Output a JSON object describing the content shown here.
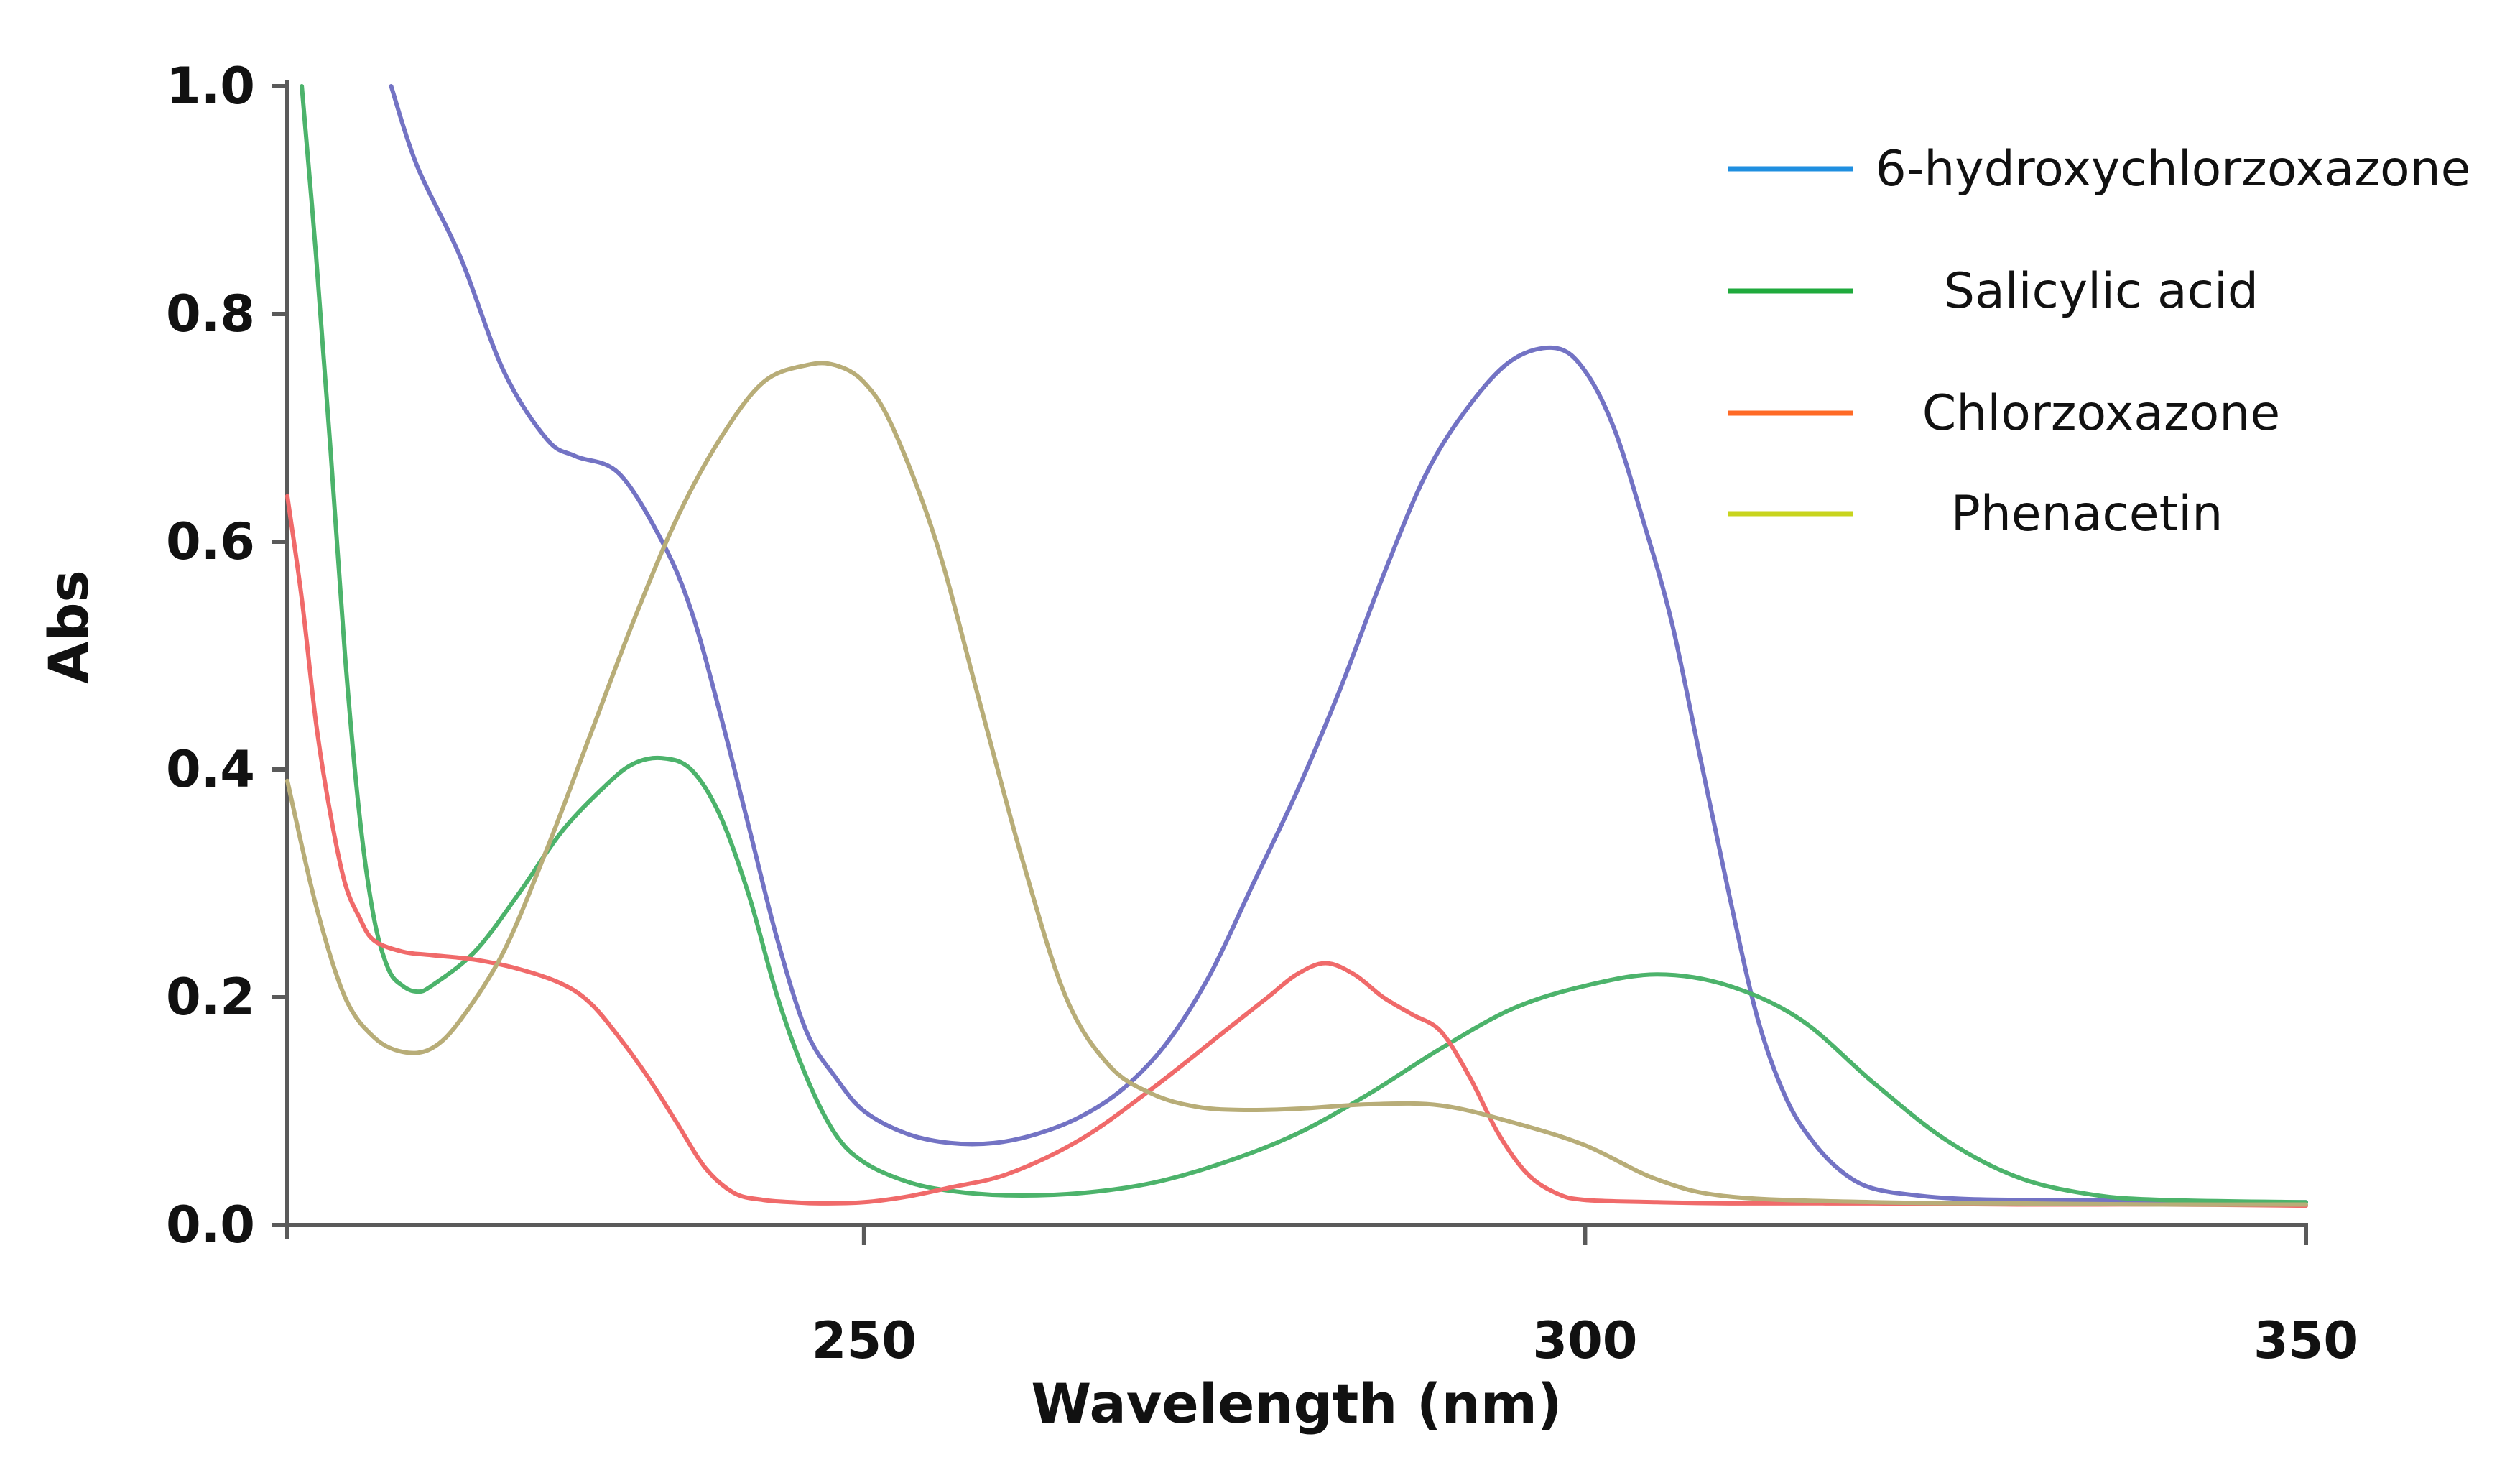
{
  "chart_data": {
    "type": "line",
    "title": "",
    "xlabel": "Wavelength (nm)",
    "ylabel": "Abs",
    "xlim": [
      210,
      350
    ],
    "ylim": [
      0,
      1.0
    ],
    "xticks": [
      250,
      300,
      350
    ],
    "xtick_labels": [
      "250",
      "300",
      "350"
    ],
    "yticks": [
      0.0,
      0.2,
      0.4,
      0.6,
      0.8,
      1.0
    ],
    "ytick_labels": [
      "0.0",
      "0.2",
      "0.4",
      "0.6",
      "0.8",
      "1.0"
    ],
    "grid": false,
    "legend_position": "top-right",
    "legend": [
      {
        "label": "6-hydroxychlorzoxazone",
        "color": "#1f8fe0"
      },
      {
        "label": "Salicylic acid",
        "color": "#1faa3c"
      },
      {
        "label": "Chlorzoxazone",
        "color": "#ff6a26"
      },
      {
        "label": "Phenacetin",
        "color": "#c8d41e"
      }
    ],
    "series": [
      {
        "name": "6-hydroxychlorzoxazone",
        "color": "#7373c4",
        "x": [
          217.2,
          219,
          222,
          225,
          228,
          230,
          233,
          236,
          238,
          240,
          242,
          244,
          246,
          248,
          250,
          253,
          256,
          259,
          262,
          265,
          268,
          271,
          274,
          277,
          280,
          283,
          286,
          289,
          292,
          295,
          298,
          300,
          302,
          304,
          306,
          308,
          310,
          312,
          314,
          316,
          318,
          320,
          323,
          326,
          330,
          335,
          340,
          345,
          350
        ],
        "y": [
          1.0,
          0.93,
          0.85,
          0.75,
          0.69,
          0.675,
          0.66,
          0.6,
          0.54,
          0.45,
          0.35,
          0.25,
          0.17,
          0.13,
          0.1,
          0.08,
          0.072,
          0.072,
          0.08,
          0.095,
          0.12,
          0.16,
          0.22,
          0.3,
          0.38,
          0.47,
          0.57,
          0.66,
          0.72,
          0.76,
          0.77,
          0.75,
          0.7,
          0.62,
          0.53,
          0.41,
          0.29,
          0.18,
          0.11,
          0.07,
          0.045,
          0.032,
          0.026,
          0.023,
          0.022,
          0.022,
          0.021,
          0.02,
          0.02
        ]
      },
      {
        "name": "Salicylic acid",
        "color": "#4cb36b",
        "x": [
          211,
          212,
          213,
          214,
          215,
          216,
          217,
          218,
          219,
          220,
          223,
          226,
          229,
          232,
          234,
          236,
          238,
          240,
          242,
          244,
          246,
          248,
          250,
          253,
          256,
          260,
          265,
          270,
          275,
          280,
          285,
          290,
          295,
          300,
          305,
          310,
          315,
          320,
          325,
          330,
          335,
          340,
          350
        ],
        "y": [
          1.0,
          0.85,
          0.68,
          0.5,
          0.36,
          0.27,
          0.225,
          0.21,
          0.205,
          0.21,
          0.24,
          0.29,
          0.345,
          0.385,
          0.405,
          0.41,
          0.4,
          0.36,
          0.29,
          0.2,
          0.13,
          0.08,
          0.055,
          0.038,
          0.03,
          0.026,
          0.028,
          0.037,
          0.055,
          0.08,
          0.115,
          0.155,
          0.19,
          0.21,
          0.22,
          0.21,
          0.18,
          0.125,
          0.075,
          0.042,
          0.027,
          0.022,
          0.02
        ]
      },
      {
        "name": "Chlorzoxazone",
        "color": "#f06a6a",
        "x": [
          210,
          211,
          212,
          213,
          214,
          215,
          216,
          218,
          220,
          223,
          226,
          229,
          231,
          233,
          235,
          237,
          239,
          241,
          243,
          245,
          247,
          250,
          253,
          256,
          260,
          265,
          270,
          275,
          278,
          280,
          282,
          284,
          286,
          288,
          290,
          292,
          294,
          296,
          298,
          300,
          305,
          310,
          320,
          330,
          340,
          350
        ],
        "y": [
          0.64,
          0.55,
          0.44,
          0.36,
          0.3,
          0.27,
          0.25,
          0.24,
          0.237,
          0.233,
          0.225,
          0.212,
          0.195,
          0.165,
          0.13,
          0.09,
          0.05,
          0.028,
          0.022,
          0.02,
          0.019,
          0.02,
          0.025,
          0.033,
          0.045,
          0.075,
          0.12,
          0.17,
          0.2,
          0.22,
          0.23,
          0.22,
          0.2,
          0.185,
          0.17,
          0.13,
          0.08,
          0.045,
          0.028,
          0.022,
          0.02,
          0.019,
          0.019,
          0.018,
          0.018,
          0.017
        ]
      },
      {
        "name": "Phenacetin",
        "color": "#b8ad78",
        "x": [
          210,
          212,
          214,
          216,
          218,
          220,
          222,
          225,
          228,
          231,
          234,
          237,
          240,
          243,
          246,
          248,
          250,
          252,
          255,
          258,
          261,
          264,
          267,
          270,
          273,
          276,
          280,
          285,
          290,
          295,
          300,
          305,
          310,
          320,
          330,
          340,
          350
        ],
        "y": [
          0.39,
          0.28,
          0.2,
          0.165,
          0.152,
          0.155,
          0.18,
          0.24,
          0.33,
          0.43,
          0.53,
          0.62,
          0.69,
          0.74,
          0.755,
          0.755,
          0.74,
          0.7,
          0.6,
          0.46,
          0.32,
          0.2,
          0.14,
          0.115,
          0.104,
          0.101,
          0.102,
          0.106,
          0.105,
          0.09,
          0.07,
          0.04,
          0.025,
          0.02,
          0.019,
          0.018,
          0.018
        ]
      }
    ]
  }
}
